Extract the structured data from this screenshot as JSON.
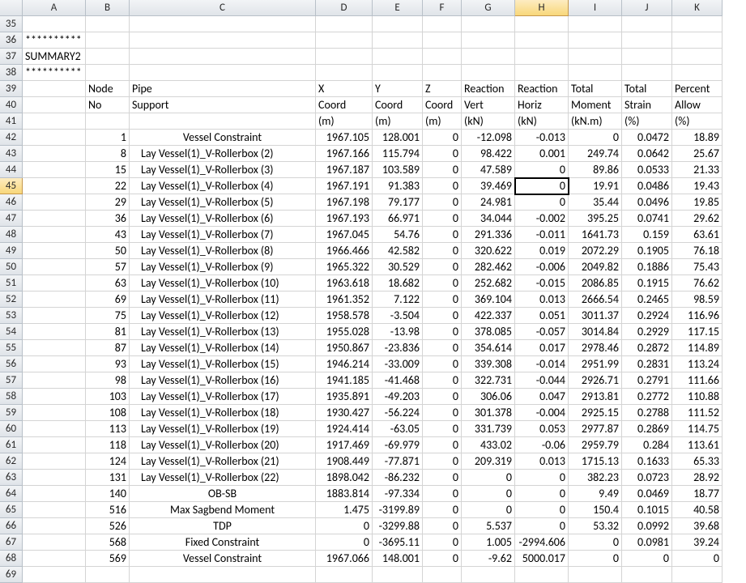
{
  "columns": [
    "A",
    "B",
    "C",
    "D",
    "E",
    "F",
    "G",
    "H",
    "I",
    "J",
    "K"
  ],
  "rowStart": 35,
  "rowEnd": 69,
  "activeCell": {
    "row": 45,
    "col": "H"
  },
  "selectedColHeader": "H",
  "selectedRowHeader": 45,
  "headerRows": {
    "36": {
      "A": "**********"
    },
    "37": {
      "A": "SUMMARY2"
    },
    "38": {
      "A": "**********"
    },
    "39": {
      "B": "Node",
      "C": "Pipe",
      "D": "X",
      "E": "Y",
      "F": "Z",
      "G": "Reaction",
      "H": "Reaction",
      "I": "Total",
      "J": "Total",
      "K": "Percent"
    },
    "40": {
      "B": "No",
      "C": "Support",
      "D": "Coord",
      "E": "Coord",
      "F": "Coord",
      "G": "Vert",
      "H": "Horiz",
      "I": "Moment",
      "J": "Strain",
      "K": "Allow"
    },
    "41": {
      "D": "(m)",
      "E": "(m)",
      "F": "(m)",
      "G": "(kN)",
      "H": "(kN)",
      "I": "(kN.m)",
      "J": "(%)",
      "K": "(%)"
    }
  },
  "data": [
    {
      "row": 42,
      "B": 1,
      "C": "Vessel Constraint",
      "Cctr": true,
      "D": 1967.105,
      "E": 128.001,
      "F": 0,
      "G": -12.098,
      "H": -0.013,
      "I": 0,
      "J": 0.0472,
      "K": 18.89
    },
    {
      "row": 43,
      "B": 8,
      "C": "Lay Vessel(1)_V-Rollerbox (2)",
      "D": 1967.166,
      "E": 115.794,
      "F": 0,
      "G": 98.422,
      "H": 0.001,
      "I": 249.74,
      "J": 0.0642,
      "K": 25.67
    },
    {
      "row": 44,
      "B": 15,
      "C": "Lay Vessel(1)_V-Rollerbox (3)",
      "D": 1967.187,
      "E": 103.589,
      "F": 0,
      "G": 47.589,
      "H": 0,
      "I": 89.86,
      "J": 0.0533,
      "K": 21.33
    },
    {
      "row": 45,
      "B": 22,
      "C": "Lay Vessel(1)_V-Rollerbox (4)",
      "D": 1967.191,
      "E": 91.383,
      "F": 0,
      "G": 39.469,
      "H": 0,
      "I": 19.91,
      "J": 0.0486,
      "K": 19.43
    },
    {
      "row": 46,
      "B": 29,
      "C": "Lay Vessel(1)_V-Rollerbox (5)",
      "D": 1967.198,
      "E": 79.177,
      "F": 0,
      "G": 24.981,
      "H": 0,
      "I": 35.44,
      "J": 0.0496,
      "K": 19.85
    },
    {
      "row": 47,
      "B": 36,
      "C": "Lay Vessel(1)_V-Rollerbox (6)",
      "D": 1967.193,
      "E": 66.971,
      "F": 0,
      "G": 34.044,
      "H": -0.002,
      "I": 395.25,
      "J": 0.0741,
      "K": 29.62
    },
    {
      "row": 48,
      "B": 43,
      "C": "Lay Vessel(1)_V-Rollerbox (7)",
      "D": 1967.045,
      "E": 54.76,
      "F": 0,
      "G": 291.336,
      "H": -0.011,
      "I": 1641.73,
      "J": 0.159,
      "K": 63.61
    },
    {
      "row": 49,
      "B": 50,
      "C": "Lay Vessel(1)_V-Rollerbox (8)",
      "D": 1966.466,
      "E": 42.582,
      "F": 0,
      "G": 320.622,
      "H": 0.019,
      "I": 2072.29,
      "J": 0.1905,
      "K": 76.18
    },
    {
      "row": 50,
      "B": 57,
      "C": "Lay Vessel(1)_V-Rollerbox (9)",
      "D": 1965.322,
      "E": 30.529,
      "F": 0,
      "G": 282.462,
      "H": -0.006,
      "I": 2049.82,
      "J": 0.1886,
      "K": 75.43
    },
    {
      "row": 51,
      "B": 63,
      "C": "Lay Vessel(1)_V-Rollerbox (10)",
      "D": 1963.618,
      "E": 18.682,
      "F": 0,
      "G": 252.682,
      "H": -0.015,
      "I": 2086.85,
      "J": 0.1915,
      "K": 76.62
    },
    {
      "row": 52,
      "B": 69,
      "C": "Lay Vessel(1)_V-Rollerbox (11)",
      "D": 1961.352,
      "E": 7.122,
      "F": 0,
      "G": 369.104,
      "H": 0.013,
      "I": 2666.54,
      "J": 0.2465,
      "K": 98.59
    },
    {
      "row": 53,
      "B": 75,
      "C": "Lay Vessel(1)_V-Rollerbox (12)",
      "D": 1958.578,
      "E": -3.504,
      "F": 0,
      "G": 422.337,
      "H": 0.051,
      "I": 3011.37,
      "J": 0.2924,
      "K": 116.96
    },
    {
      "row": 54,
      "B": 81,
      "C": "Lay Vessel(1)_V-Rollerbox (13)",
      "D": 1955.028,
      "E": -13.98,
      "F": 0,
      "G": 378.085,
      "H": -0.057,
      "I": 3014.84,
      "J": 0.2929,
      "K": 117.15
    },
    {
      "row": 55,
      "B": 87,
      "C": "Lay Vessel(1)_V-Rollerbox (14)",
      "D": 1950.867,
      "E": -23.836,
      "F": 0,
      "G": 354.614,
      "H": 0.017,
      "I": 2978.46,
      "J": 0.2872,
      "K": 114.89
    },
    {
      "row": 56,
      "B": 93,
      "C": "Lay Vessel(1)_V-Rollerbox (15)",
      "D": 1946.214,
      "E": -33.009,
      "F": 0,
      "G": 339.308,
      "H": -0.014,
      "I": 2951.99,
      "J": 0.2831,
      "K": 113.24
    },
    {
      "row": 57,
      "B": 98,
      "C": "Lay Vessel(1)_V-Rollerbox (16)",
      "D": 1941.185,
      "E": -41.468,
      "F": 0,
      "G": 322.731,
      "H": -0.044,
      "I": 2926.71,
      "J": 0.2791,
      "K": 111.66
    },
    {
      "row": 58,
      "B": 103,
      "C": "Lay Vessel(1)_V-Rollerbox (17)",
      "D": 1935.891,
      "E": -49.203,
      "F": 0,
      "G": 306.06,
      "H": 0.047,
      "I": 2913.81,
      "J": 0.2772,
      "K": 110.88
    },
    {
      "row": 59,
      "B": 108,
      "C": "Lay Vessel(1)_V-Rollerbox (18)",
      "D": 1930.427,
      "E": -56.224,
      "F": 0,
      "G": 301.378,
      "H": -0.004,
      "I": 2925.15,
      "J": 0.2788,
      "K": 111.52
    },
    {
      "row": 60,
      "B": 113,
      "C": "Lay Vessel(1)_V-Rollerbox (19)",
      "D": 1924.414,
      "E": -63.05,
      "F": 0,
      "G": 331.739,
      "H": 0.053,
      "I": 2977.87,
      "J": 0.2869,
      "K": 114.75
    },
    {
      "row": 61,
      "B": 118,
      "C": "Lay Vessel(1)_V-Rollerbox (20)",
      "D": 1917.469,
      "E": -69.979,
      "F": 0,
      "G": 433.02,
      "H": -0.06,
      "I": 2959.79,
      "J": 0.284,
      "K": 113.61
    },
    {
      "row": 62,
      "B": 124,
      "C": "Lay Vessel(1)_V-Rollerbox (21)",
      "D": 1908.449,
      "E": -77.871,
      "F": 0,
      "G": 209.319,
      "H": 0.013,
      "I": 1715.13,
      "J": 0.1633,
      "K": 65.33
    },
    {
      "row": 63,
      "B": 131,
      "C": "Lay Vessel(1)_V-Rollerbox (22)",
      "D": 1898.042,
      "E": -86.232,
      "F": 0,
      "G": 0,
      "H": 0,
      "I": 382.23,
      "J": 0.0723,
      "K": 28.92
    },
    {
      "row": 64,
      "B": 140,
      "C": "OB-SB",
      "Cctr": true,
      "D": 1883.814,
      "E": -97.334,
      "F": 0,
      "G": 0,
      "H": 0,
      "I": 9.49,
      "J": 0.0469,
      "K": 18.77
    },
    {
      "row": 65,
      "B": 516,
      "C": "Max Sagbend Moment",
      "Cctr": true,
      "D": 1.475,
      "E": -3199.89,
      "F": 0,
      "G": 0,
      "H": 0,
      "I": 150.4,
      "J": 0.1015,
      "K": 40.58
    },
    {
      "row": 66,
      "B": 526,
      "C": "TDP",
      "Cctr": true,
      "D": 0,
      "E": -3299.88,
      "F": 0,
      "G": 5.537,
      "H": 0,
      "I": 53.32,
      "J": 0.0992,
      "K": 39.68
    },
    {
      "row": 67,
      "B": 568,
      "C": "Fixed Constraint",
      "Cctr": true,
      "D": 0,
      "E": -3695.11,
      "F": 0,
      "G": 1.005,
      "H": -2994.606,
      "I": 0,
      "J": 0.0981,
      "K": 39.24
    },
    {
      "row": 68,
      "B": 569,
      "C": "Vessel Constraint",
      "Cctr": true,
      "D": 1967.066,
      "E": 148.001,
      "F": 0,
      "G": -9.62,
      "H": 5000.017,
      "I": 0,
      "J": 0,
      "K": 0
    }
  ]
}
